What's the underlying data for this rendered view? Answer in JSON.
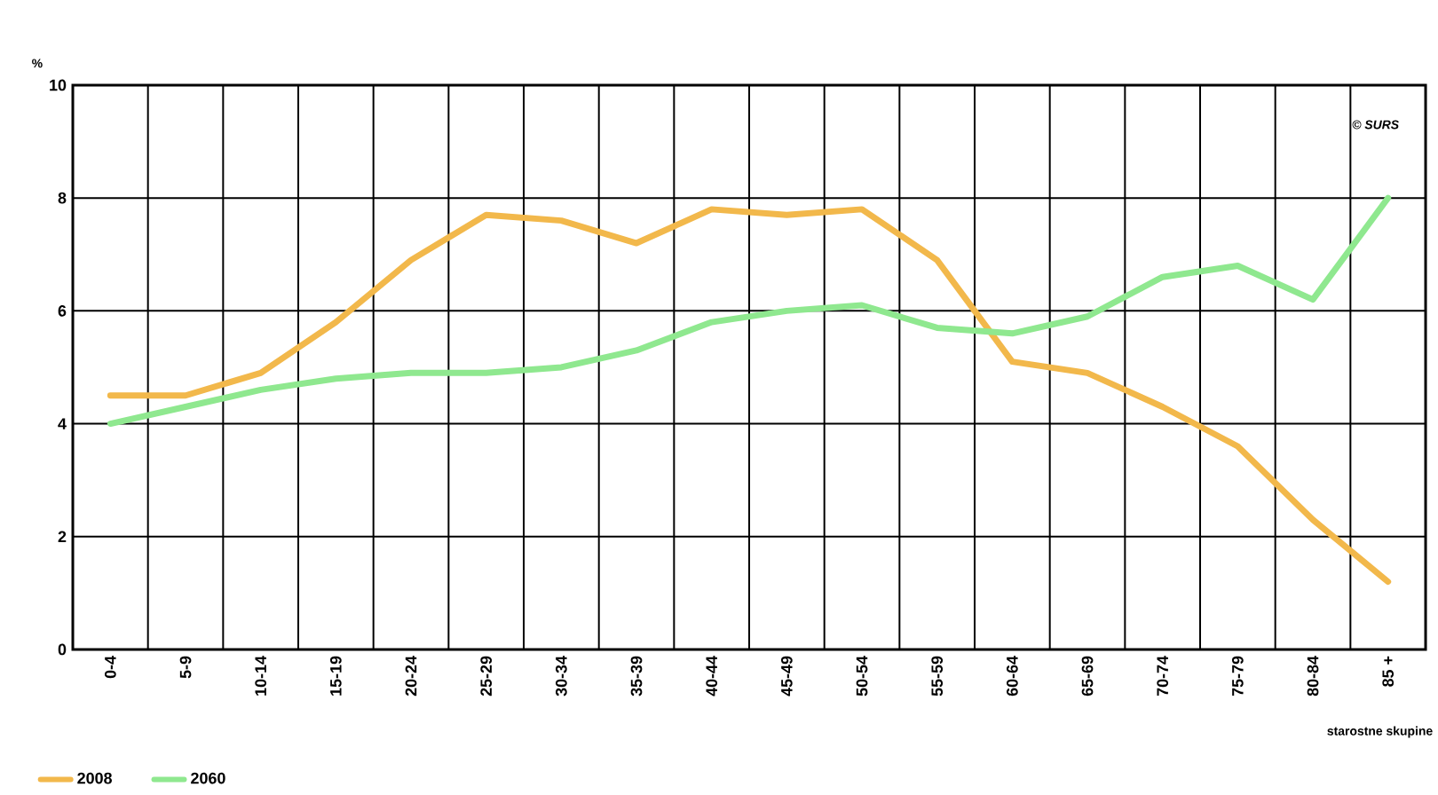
{
  "chart_data": {
    "type": "line",
    "ylabel": "%",
    "xlabel": "starostne skupine",
    "categories": [
      "0-4",
      "5-9",
      "10-14",
      "15-19",
      "20-24",
      "25-29",
      "30-34",
      "35-39",
      "40-44",
      "45-49",
      "50-54",
      "55-59",
      "60-64",
      "65-69",
      "70-74",
      "75-79",
      "80-84",
      "85 +"
    ],
    "series": [
      {
        "name": "2008",
        "color": "#f2b84b",
        "values": [
          4.5,
          4.5,
          4.9,
          5.8,
          6.9,
          7.7,
          7.6,
          7.2,
          7.8,
          7.7,
          7.8,
          6.9,
          5.1,
          4.9,
          4.3,
          3.6,
          2.3,
          1.2
        ]
      },
      {
        "name": "2060",
        "color": "#8fe88f",
        "values": [
          4.0,
          4.3,
          4.6,
          4.8,
          4.9,
          4.9,
          5.0,
          5.3,
          5.8,
          6.0,
          6.1,
          5.7,
          5.6,
          5.9,
          6.6,
          6.8,
          6.2,
          8.0
        ]
      }
    ],
    "ylim": [
      0,
      10
    ],
    "yticks": [
      0,
      2,
      4,
      6,
      8,
      10
    ],
    "grid": true,
    "legend": "bottom left",
    "marker": "none",
    "line_style": "solid",
    "annotations": [
      "© SURS"
    ]
  }
}
